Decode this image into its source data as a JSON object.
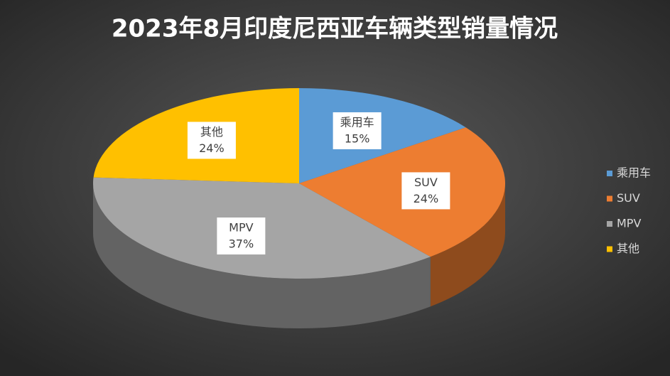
{
  "chart_data": {
    "type": "pie3d",
    "title": "2023年8月印度尼西亚车辆类型销量情况",
    "categories": [
      "乘用车",
      "SUV",
      "MPV",
      "其他"
    ],
    "values": [
      15,
      24,
      37,
      24
    ],
    "value_labels": [
      "15%",
      "24%",
      "37%",
      "24%"
    ],
    "colors": [
      "#5b9bd5",
      "#ed7d31",
      "#a5a5a5",
      "#ffc000"
    ],
    "legend": "right"
  }
}
